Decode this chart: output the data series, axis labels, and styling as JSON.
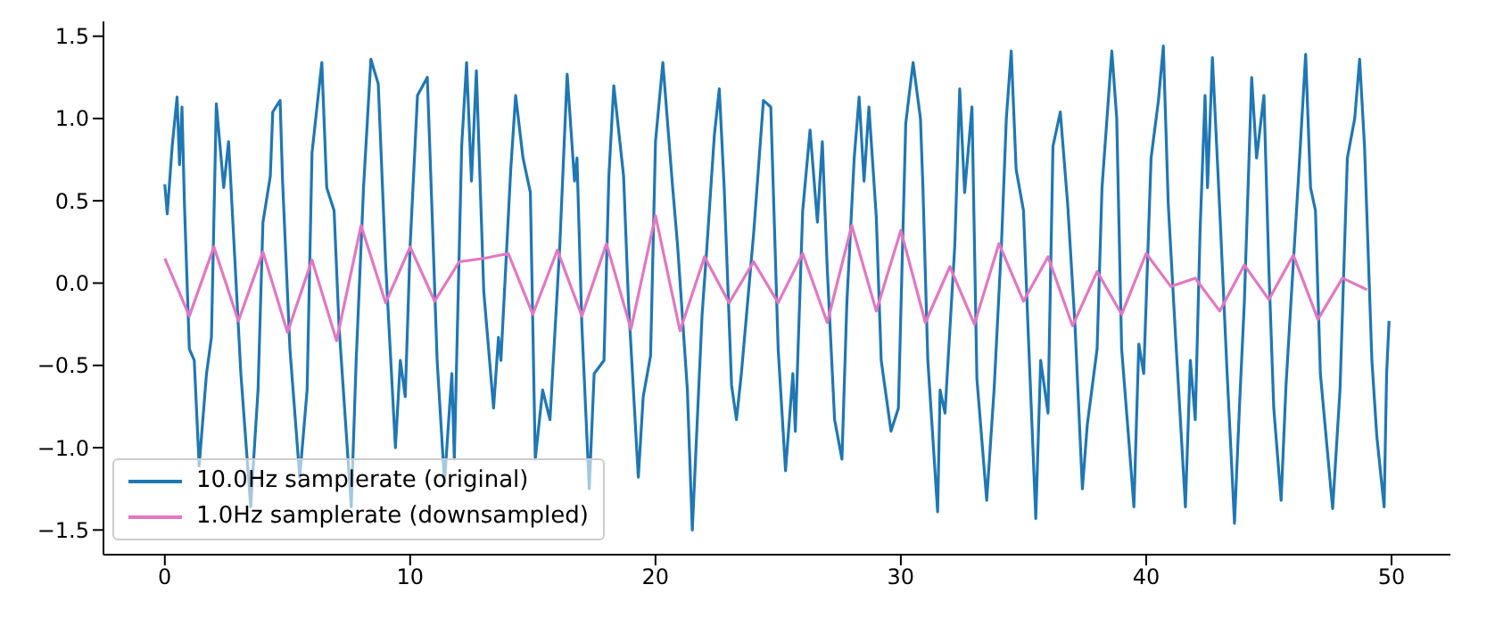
{
  "chart_data": {
    "type": "line",
    "xlim": [
      -2.5,
      52.4
    ],
    "ylim": [
      -1.65,
      1.59
    ],
    "xticks": [
      0,
      10,
      20,
      30,
      40,
      50
    ],
    "yticks": [
      {
        "value": -1.5,
        "label": "−1.5"
      },
      {
        "value": -1,
        "label": "−1.0"
      },
      {
        "value": -0.5,
        "label": "−0.5"
      },
      {
        "value": 0,
        "label": "0.0"
      },
      {
        "value": 0.5,
        "label": "0.5"
      },
      {
        "value": 1,
        "label": "1.0"
      },
      {
        "value": 1.5,
        "label": "1.5"
      }
    ],
    "legend": "bottom left",
    "grid": false,
    "marker": "none",
    "line_style": "solid",
    "series": [
      {
        "name": "10.0Hz samplerate (original)",
        "color": "#1f77b4",
        "x": [
          0,
          0.1,
          0.3,
          0.5,
          0.6,
          0.7,
          0.8,
          1.0,
          1.2,
          1.4,
          1.7,
          1.9,
          2.1,
          2.4,
          2.6,
          2.7,
          3.1,
          3.5,
          3.8,
          4.0,
          4.3,
          4.4,
          4.7,
          4.8,
          5.1,
          5.5,
          5.8,
          6.0,
          6.4,
          6.6,
          6.9,
          7.1,
          7.6,
          7.8,
          8.1,
          8.4,
          8.7,
          9.0,
          9.4,
          9.6,
          9.8,
          10.0,
          10.3,
          10.7,
          10.9,
          11.1,
          11.4,
          11.7,
          11.8,
          12.1,
          12.3,
          12.5,
          12.7,
          13.0,
          13.4,
          13.6,
          13.7,
          14.1,
          14.3,
          14.6,
          14.9,
          15.1,
          15.4,
          15.7,
          16.1,
          16.4,
          16.7,
          16.8,
          17.0,
          17.3,
          17.5,
          17.9,
          18.1,
          18.3,
          18.7,
          18.9,
          19.3,
          19.5,
          19.8,
          20.0,
          20.3,
          20.7,
          20.9,
          21.3,
          21.5,
          21.9,
          22.1,
          22.4,
          22.6,
          22.8,
          23.1,
          23.3,
          23.5,
          24.0,
          24.4,
          24.7,
          25.0,
          25.3,
          25.6,
          25.7,
          26.0,
          26.3,
          26.6,
          26.8,
          27.0,
          27.3,
          27.6,
          27.8,
          28.1,
          28.3,
          28.5,
          28.7,
          29.0,
          29.2,
          29.6,
          29.9,
          30.2,
          30.5,
          30.8,
          30.9,
          31.1,
          31.5,
          31.6,
          31.8,
          32.2,
          32.4,
          32.6,
          32.9,
          33.1,
          33.5,
          33.8,
          34.1,
          34.3,
          34.5,
          34.7,
          35.0,
          35.2,
          35.5,
          35.7,
          36.0,
          36.2,
          36.5,
          36.8,
          37.1,
          37.4,
          37.6,
          38.0,
          38.2,
          38.6,
          38.8,
          39.0,
          39.3,
          39.5,
          39.7,
          39.9,
          40.2,
          40.5,
          40.7,
          40.9,
          41.2,
          41.6,
          41.8,
          42.0,
          42.2,
          42.4,
          42.5,
          42.7,
          43.0,
          43.3,
          43.6,
          43.8,
          44.0,
          44.3,
          44.5,
          44.8,
          45.0,
          45.2,
          45.5,
          45.7,
          45.9,
          46.2,
          46.5,
          46.7,
          46.9,
          47.1,
          47.6,
          47.9,
          48.2,
          48.5,
          48.7,
          48.9,
          49.2,
          49.4,
          49.7,
          49.8,
          49.9
        ],
        "values": [
          0.6,
          0.42,
          0.83,
          1.13,
          0.72,
          1.07,
          0.48,
          -0.4,
          -0.47,
          -1.11,
          -0.55,
          -0.33,
          1.09,
          0.58,
          0.86,
          0.58,
          -0.55,
          -1.36,
          -0.65,
          0.37,
          0.65,
          1.04,
          1.11,
          0.62,
          -0.4,
          -1.18,
          -0.65,
          0.79,
          1.34,
          0.58,
          0.44,
          -0.26,
          -1.36,
          -0.47,
          0.58,
          1.36,
          1.21,
          0.12,
          -1.0,
          -0.47,
          -0.69,
          0.23,
          1.14,
          1.25,
          0.4,
          -0.47,
          -1.21,
          -0.55,
          -1.07,
          0.83,
          1.34,
          0.62,
          1.29,
          -0.05,
          -0.76,
          -0.33,
          -0.47,
          0.69,
          1.14,
          0.76,
          0.55,
          -1.07,
          -0.65,
          -0.83,
          0.23,
          1.27,
          0.62,
          0.76,
          -0.26,
          -1.25,
          -0.55,
          -0.47,
          0.65,
          1.2,
          0.65,
          -0.12,
          -1.18,
          -0.69,
          -0.44,
          0.86,
          1.34,
          0.58,
          0.23,
          -0.65,
          -1.5,
          -0.19,
          0.23,
          0.9,
          1.18,
          0.58,
          -0.62,
          -0.83,
          -0.55,
          0.3,
          1.11,
          1.07,
          -0.4,
          -1.14,
          -0.55,
          -0.9,
          0.44,
          0.93,
          0.37,
          0.86,
          0.09,
          -0.83,
          -1.07,
          -0.12,
          0.76,
          1.13,
          0.62,
          1.07,
          0.4,
          -0.47,
          -0.9,
          -0.76,
          0.97,
          1.34,
          1.0,
          0.58,
          -0.47,
          -1.39,
          -0.65,
          -0.79,
          0.23,
          1.18,
          0.55,
          1.07,
          -0.58,
          -1.32,
          -0.65,
          0.23,
          1.0,
          1.41,
          0.69,
          0.44,
          -0.33,
          -1.43,
          -0.47,
          -0.79,
          0.83,
          1.04,
          0.48,
          -0.26,
          -1.25,
          -0.86,
          -0.4,
          0.58,
          1.41,
          1.0,
          -0.4,
          -0.97,
          -1.36,
          -0.37,
          -0.55,
          0.76,
          1.11,
          1.44,
          0.48,
          -0.33,
          -1.36,
          -0.47,
          -0.83,
          0.33,
          1.14,
          0.58,
          1.37,
          0.44,
          -0.55,
          -1.46,
          -0.76,
          -0.12,
          1.25,
          0.76,
          1.14,
          0.09,
          -0.76,
          -1.32,
          -0.62,
          -0.12,
          0.62,
          1.39,
          0.58,
          0.44,
          -0.55,
          -1.37,
          -0.65,
          0.76,
          1.0,
          1.36,
          0.83,
          -0.47,
          -0.93,
          -1.36,
          -0.55,
          -0.23
        ]
      },
      {
        "name": "1.0Hz samplerate (downsampled)",
        "color": "#e377c2",
        "x": [
          0,
          1,
          2,
          3,
          4,
          5,
          6,
          7,
          8,
          9,
          10,
          11,
          12,
          13,
          14,
          15,
          16,
          17,
          18,
          19,
          20,
          21,
          22,
          23,
          24,
          25,
          26,
          27,
          28,
          29,
          30,
          31,
          32,
          33,
          34,
          35,
          36,
          37,
          38,
          39,
          40,
          41,
          42,
          43,
          44,
          45,
          46,
          47,
          48,
          49
        ],
        "values": [
          0.15,
          -0.2,
          0.22,
          -0.23,
          0.19,
          -0.3,
          0.14,
          -0.35,
          0.35,
          -0.12,
          0.22,
          -0.11,
          0.13,
          0.15,
          0.18,
          -0.19,
          0.2,
          -0.2,
          0.24,
          -0.28,
          0.41,
          -0.29,
          0.16,
          -0.12,
          0.13,
          -0.12,
          0.18,
          -0.24,
          0.35,
          -0.17,
          0.32,
          -0.24,
          0.1,
          -0.25,
          0.24,
          -0.11,
          0.16,
          -0.26,
          0.07,
          -0.19,
          0.18,
          -0.02,
          0.03,
          -0.17,
          0.11,
          -0.1,
          0.17,
          -0.22,
          0.03,
          -0.04
        ]
      }
    ]
  }
}
